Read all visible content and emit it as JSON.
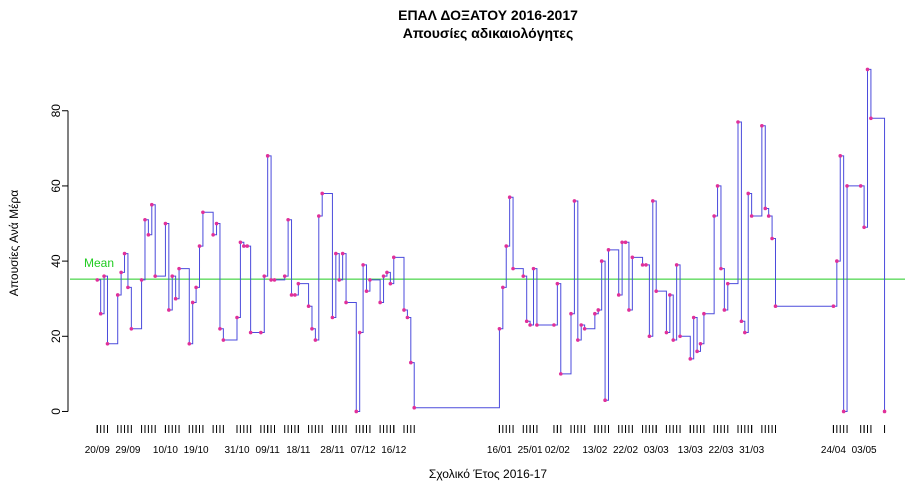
{
  "chart_data": {
    "type": "step",
    "title": "ΕΠΑΛ ΔΟΞΑΤΟΥ 2016-2017",
    "subtitle": "Απουσίες αδικαιολόγητες",
    "x_label": "Σχολικό Έτος 2016-17",
    "y_label": "Απουσίες Ανά Μέρα",
    "x": [
      "20/09",
      "21/09",
      "22/09",
      "23/09",
      "26/09",
      "27/09",
      "28/09",
      "29/09",
      "30/09",
      "03/10",
      "04/10",
      "05/10",
      "06/10",
      "07/10",
      "10/10",
      "11/10",
      "12/10",
      "13/10",
      "14/10",
      "17/10",
      "18/10",
      "19/10",
      "20/10",
      "21/10",
      "24/10",
      "25/10",
      "26/10",
      "27/10",
      "31/10",
      "01/11",
      "02/11",
      "03/11",
      "04/11",
      "07/11",
      "08/11",
      "09/11",
      "10/11",
      "11/11",
      "14/11",
      "15/11",
      "16/11",
      "17/11",
      "18/11",
      "21/11",
      "22/11",
      "23/11",
      "24/11",
      "25/11",
      "28/11",
      "29/11",
      "30/11",
      "01/12",
      "02/12",
      "05/12",
      "06/12",
      "07/12",
      "08/12",
      "09/12",
      "12/12",
      "13/12",
      "14/12",
      "15/12",
      "16/12",
      "19/12",
      "20/12",
      "21/12",
      "22/12",
      "16/01",
      "17/01",
      "18/01",
      "19/01",
      "20/01",
      "23/01",
      "24/01",
      "25/01",
      "26/01",
      "27/01",
      "01/02",
      "02/02",
      "03/02",
      "06/02",
      "07/02",
      "08/02",
      "09/02",
      "10/02",
      "13/02",
      "14/02",
      "15/02",
      "16/02",
      "17/02",
      "20/02",
      "21/02",
      "22/02",
      "23/02",
      "24/02",
      "27/02",
      "28/02",
      "01/03",
      "02/03",
      "03/03",
      "06/03",
      "07/03",
      "08/03",
      "09/03",
      "10/03",
      "13/03",
      "14/03",
      "15/03",
      "16/03",
      "17/03",
      "20/03",
      "21/03",
      "22/03",
      "23/03",
      "24/03",
      "27/03",
      "28/03",
      "29/03",
      "30/03",
      "31/03",
      "03/04",
      "04/04",
      "05/04",
      "06/04",
      "07/04",
      "24/04",
      "25/04",
      "26/04",
      "27/04",
      "28/04",
      "02/05",
      "03/05",
      "04/05",
      "05/05",
      "09/05"
    ],
    "series": [
      {
        "name": "Απουσίες",
        "color": "#4b4bdc",
        "point_color": "#e0309a",
        "values": [
          35,
          26,
          36,
          18,
          31,
          37,
          42,
          33,
          22,
          35,
          51,
          47,
          55,
          36,
          50,
          27,
          36,
          30,
          38,
          18,
          29,
          33,
          44,
          53,
          47,
          50,
          22,
          19,
          25,
          45,
          44,
          44,
          21,
          21,
          36,
          68,
          35,
          35,
          36,
          51,
          31,
          31,
          34,
          28,
          22,
          19,
          52,
          58,
          25,
          42,
          35,
          42,
          29,
          0,
          21,
          39,
          32,
          35,
          29,
          36,
          37,
          34,
          41,
          27,
          25,
          13,
          1,
          22,
          33,
          44,
          57,
          38,
          36,
          24,
          23,
          38,
          23,
          23,
          34,
          10,
          26,
          56,
          19,
          23,
          22,
          26,
          27,
          40,
          3,
          43,
          31,
          45,
          45,
          27,
          41,
          39,
          39,
          20,
          56,
          32,
          21,
          31,
          19,
          39,
          20,
          14,
          25,
          16,
          18,
          26,
          52,
          60,
          38,
          27,
          34,
          77,
          24,
          21,
          58,
          52,
          76,
          54,
          52,
          46,
          28,
          28,
          40,
          68,
          0,
          60,
          60,
          49,
          91,
          78,
          0
        ]
      }
    ],
    "mean": {
      "value": 35.2,
      "label": "Mean",
      "color": "#22cc22"
    },
    "xticks": [
      "20/09",
      "29/09",
      "10/10",
      "19/10",
      "31/10",
      "09/11",
      "18/11",
      "28/11",
      "07/12",
      "16/12",
      "16/01",
      "25/01",
      "02/02",
      "13/02",
      "22/02",
      "03/03",
      "13/03",
      "22/03",
      "31/03",
      "24/04",
      "03/05"
    ],
    "xlim": [
      "12/09",
      "15/05"
    ],
    "ylim": [
      -3.6,
      93.5
    ],
    "yticks": [
      0,
      20,
      40,
      60,
      80
    ],
    "grid": false
  }
}
